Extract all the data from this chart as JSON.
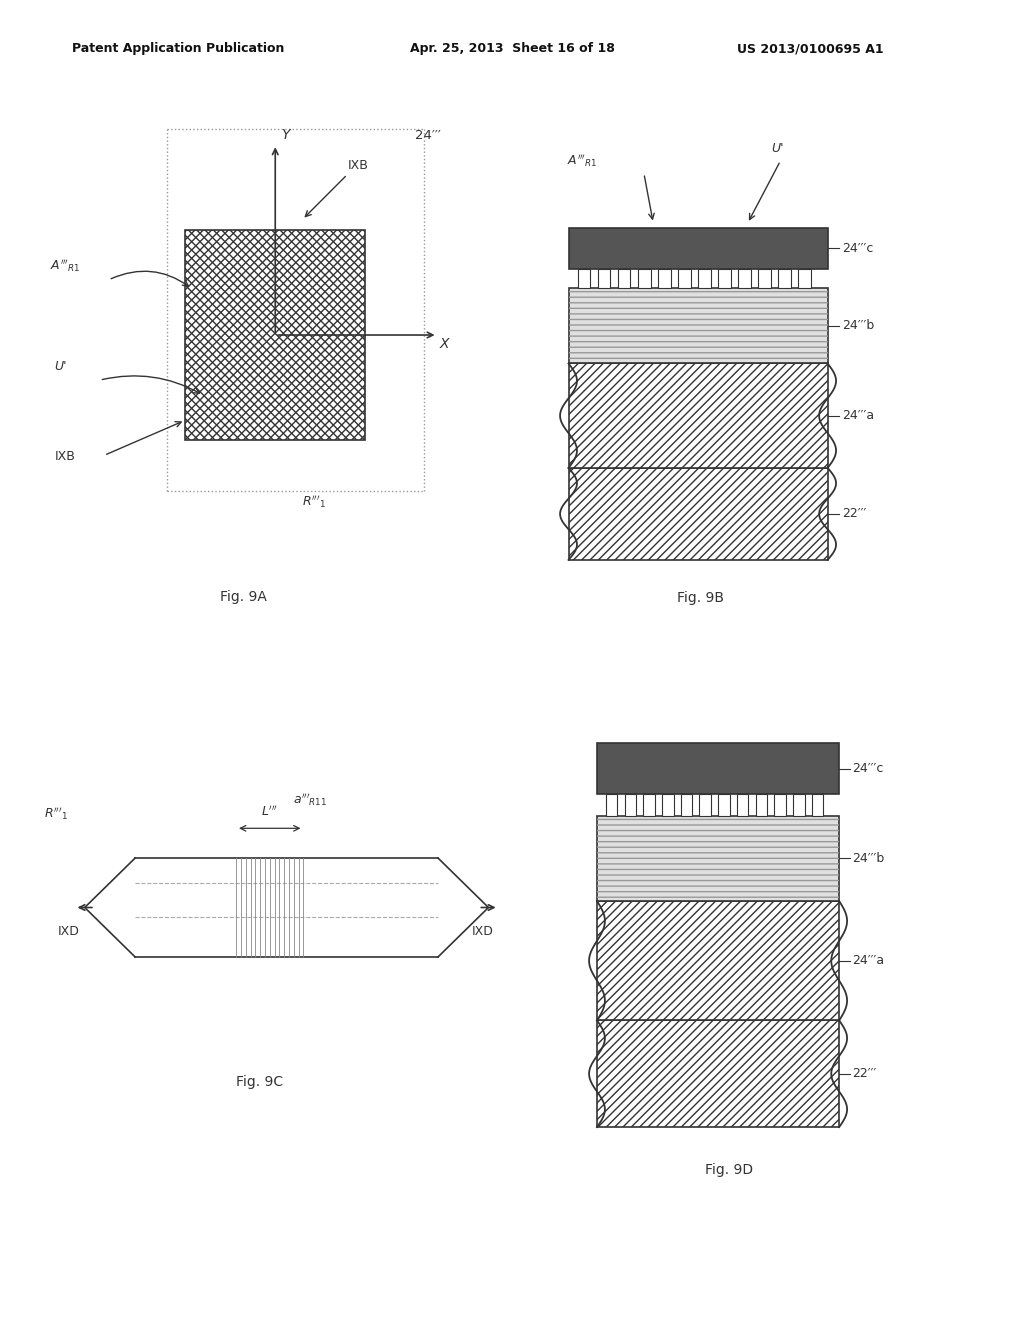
{
  "header_left": "Patent Application Publication",
  "header_mid": "Apr. 25, 2013  Sheet 16 of 18",
  "header_right": "US 2013/0100695 A1",
  "fig_labels": [
    "Fig. 9A",
    "Fig. 9B",
    "Fig. 9C",
    "Fig. 9D"
  ],
  "bg_color": "#ffffff",
  "line_color": "#333333",
  "dark_fill": "#444444"
}
